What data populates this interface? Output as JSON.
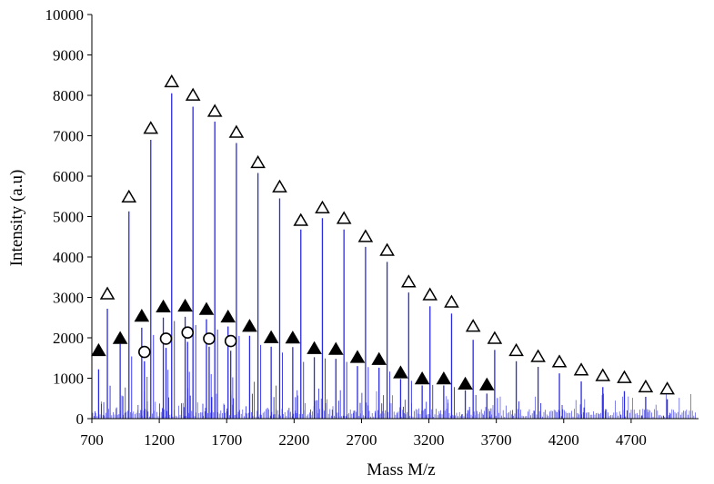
{
  "chart_data": {
    "type": "bar",
    "xlabel": "Mass M/z",
    "ylabel": "Intensity (a.u)",
    "xlim": [
      700,
      5200
    ],
    "ylim": [
      0,
      10000
    ],
    "x_ticks": [
      700,
      1200,
      1700,
      2200,
      2700,
      3200,
      3700,
      4200,
      4700
    ],
    "y_ticks": [
      0,
      1000,
      2000,
      3000,
      4000,
      5000,
      6000,
      7000,
      8000,
      9000,
      10000
    ],
    "grid": false,
    "legend": "none",
    "bar_color": "#2a2ae0",
    "series": [
      {
        "marker": "open-triangle",
        "x": [
          815,
          975,
          1137,
          1292,
          1450,
          1612,
          1772,
          1932,
          2093,
          2250,
          2410,
          2570,
          2730,
          2890,
          3050,
          3208,
          3368,
          3528,
          3688,
          3848,
          4010,
          4168,
          4330,
          4490,
          4650,
          4808,
          4968
        ],
        "peak": [
          2720,
          5130,
          6900,
          8050,
          7720,
          7350,
          6820,
          6080,
          5450,
          4680,
          4960,
          4680,
          4250,
          3880,
          3120,
          2780,
          2600,
          1950,
          1700,
          1420,
          1280,
          1120,
          920,
          780,
          680,
          540,
          480
        ],
        "marker_y": [
          3100,
          5500,
          7200,
          8350,
          8020,
          7620,
          7100,
          6350,
          5750,
          4920,
          5230,
          4970,
          4520,
          4180,
          3400,
          3080,
          2900,
          2300,
          2000,
          1700,
          1550,
          1420,
          1220,
          1080,
          1030,
          800,
          750
        ]
      },
      {
        "marker": "filled-triangle",
        "x": [
          750,
          910,
          1070,
          1230,
          1392,
          1550,
          1710,
          1870,
          2030,
          2190,
          2350,
          2510,
          2670,
          2830,
          2990,
          3150,
          3310,
          3470,
          3630
        ],
        "peak": [
          1220,
          1850,
          2250,
          2500,
          2520,
          2460,
          2280,
          2050,
          1780,
          1770,
          1520,
          1480,
          1300,
          1260,
          980,
          820,
          820,
          700,
          620
        ],
        "marker_y": [
          1700,
          2000,
          2550,
          2780,
          2800,
          2720,
          2530,
          2300,
          2020,
          2010,
          1750,
          1730,
          1530,
          1480,
          1150,
          1000,
          1000,
          870,
          850
        ]
      },
      {
        "marker": "open-circle",
        "x": [
          1090,
          1250,
          1410,
          1570,
          1730
        ],
        "peak": [
          1420,
          1750,
          1900,
          1780,
          1680
        ],
        "marker_y": [
          1650,
          1980,
          2130,
          1980,
          1920
        ]
      }
    ]
  }
}
